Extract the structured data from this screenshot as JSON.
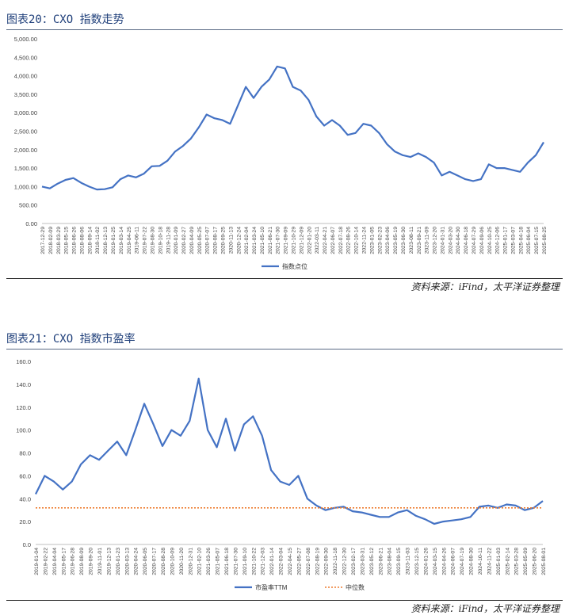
{
  "figures": [
    {
      "title": "图表20：CXO 指数走势",
      "source": "资料来源：iFind，太平洋证券整理"
    },
    {
      "title": "图表21：CXO 指数市盈率",
      "source": "资料来源：iFind，太平洋证券整理"
    }
  ],
  "colors": {
    "line": "#4472c4",
    "median": "#ed7d31",
    "title": "#1f3f7a"
  },
  "chart_data": [
    {
      "type": "line",
      "title": "",
      "xlabel": "",
      "ylabel": "",
      "ylim": [
        0,
        5000
      ],
      "yticks": [
        "0.00",
        "500.00",
        "1,000.00",
        "1,500.00",
        "2,000.00",
        "2,500.00",
        "3,000.00",
        "3,500.00",
        "4,000.00",
        "4,500.00",
        "5,000.00"
      ],
      "categories": [
        "2017-12-29",
        "2018-02-09",
        "2018-03-29",
        "2018-05-15",
        "2018-06-26",
        "2018-08-06",
        "2018-09-14",
        "2018-11-02",
        "2018-12-13",
        "2019-01-25",
        "2019-03-14",
        "2019-04-25",
        "2019-06-11",
        "2019-07-22",
        "2019-08-30",
        "2019-10-18",
        "2019-11-28",
        "2020-01-09",
        "2020-02-27",
        "2020-04-09",
        "2020-05-25",
        "2020-07-07",
        "2020-08-17",
        "2020-09-25",
        "2020-11-13",
        "2020-12-24",
        "2021-02-04",
        "2021-03-24",
        "2021-05-10",
        "2021-06-21",
        "2021-07-30",
        "2021-09-09",
        "2021-10-29",
        "2021-12-09",
        "2022-01-20",
        "2022-03-11",
        "2022-04-21",
        "2022-06-07",
        "2022-07-18",
        "2022-08-26",
        "2022-10-14",
        "2022-11-24",
        "2023-01-05",
        "2023-02-23",
        "2023-04-06",
        "2023-05-19",
        "2023-06-30",
        "2023-08-11",
        "2023-09-21",
        "2023-11-09",
        "2023-12-20",
        "2024-01-31",
        "2024-03-20",
        "2024-04-30",
        "2024-06-18",
        "2024-07-29",
        "2024-09-06",
        "2024-10-25",
        "2024-12-06",
        "2025-01-17",
        "2025-03-07",
        "2025-04-18",
        "2025-06-04",
        "2025-07-15",
        "2025-08-25"
      ],
      "series": [
        {
          "name": "指数点位",
          "values": [
            1000,
            950,
            1080,
            1180,
            1230,
            1100,
            1000,
            920,
            930,
            980,
            1200,
            1300,
            1250,
            1350,
            1550,
            1560,
            1700,
            1950,
            2100,
            2300,
            2600,
            2950,
            2850,
            2800,
            2700,
            3200,
            3700,
            3400,
            3700,
            3900,
            4250,
            4200,
            3700,
            3600,
            3350,
            2900,
            2650,
            2800,
            2650,
            2400,
            2450,
            2700,
            2650,
            2450,
            2150,
            1950,
            1850,
            1800,
            1900,
            1800,
            1650,
            1300,
            1400,
            1300,
            1200,
            1150,
            1200,
            1600,
            1500,
            1500,
            1450,
            1400,
            1650,
            1850,
            2200
          ]
        }
      ]
    },
    {
      "type": "line",
      "title": "",
      "xlabel": "",
      "ylabel": "",
      "ylim": [
        0,
        160
      ],
      "yticks": [
        "0.0",
        "20.0",
        "40.0",
        "60.0",
        "80.0",
        "100.0",
        "120.0",
        "140.0",
        "160.0"
      ],
      "categories": [
        "2019-01-04",
        "2019-02-22",
        "2019-04-04",
        "2019-05-17",
        "2019-06-28",
        "2019-08-09",
        "2019-09-20",
        "2019-11-01",
        "2019-12-13",
        "2020-01-23",
        "2020-03-13",
        "2020-04-24",
        "2020-06-05",
        "2020-07-17",
        "2020-08-28",
        "2020-10-09",
        "2020-11-20",
        "2020-12-31",
        "2021-02-10",
        "2021-03-26",
        "2021-05-07",
        "2021-06-18",
        "2021-07-30",
        "2021-09-10",
        "2021-10-22",
        "2021-12-03",
        "2022-01-14",
        "2022-03-04",
        "2022-04-15",
        "2022-05-27",
        "2022-07-08",
        "2022-08-19",
        "2022-09-30",
        "2022-11-18",
        "2022-12-30",
        "2023-02-17",
        "2023-03-31",
        "2023-05-12",
        "2023-06-21",
        "2023-08-04",
        "2023-09-15",
        "2023-11-03",
        "2023-12-15",
        "2024-01-26",
        "2024-03-15",
        "2024-04-26",
        "2024-06-07",
        "2024-07-19",
        "2024-08-30",
        "2024-10-11",
        "2024-11-22",
        "2025-01-03",
        "2025-02-14",
        "2025-03-28",
        "2025-05-09",
        "2025-06-20",
        "2025-08-01"
      ],
      "series": [
        {
          "name": "市盈率TTM",
          "values": [
            44,
            60,
            55,
            48,
            55,
            70,
            78,
            74,
            82,
            90,
            78,
            100,
            123,
            105,
            86,
            100,
            95,
            108,
            145,
            100,
            85,
            110,
            82,
            105,
            112,
            95,
            65,
            55,
            52,
            60,
            40,
            34,
            30,
            32,
            33,
            29,
            28,
            26,
            24,
            24,
            28,
            30,
            25,
            22,
            18,
            20,
            21,
            22,
            24,
            33,
            34,
            32,
            35,
            34,
            30,
            32,
            38
          ]
        },
        {
          "name": "中位数",
          "values": [
            32,
            32,
            32,
            32,
            32,
            32,
            32,
            32,
            32,
            32,
            32,
            32,
            32,
            32,
            32,
            32,
            32,
            32,
            32,
            32,
            32,
            32,
            32,
            32,
            32,
            32,
            32,
            32,
            32,
            32,
            32,
            32,
            32,
            32,
            32,
            32,
            32,
            32,
            32,
            32,
            32,
            32,
            32,
            32,
            32,
            32,
            32,
            32,
            32,
            32,
            32,
            32,
            32,
            32,
            32,
            32,
            32
          ]
        }
      ]
    }
  ]
}
